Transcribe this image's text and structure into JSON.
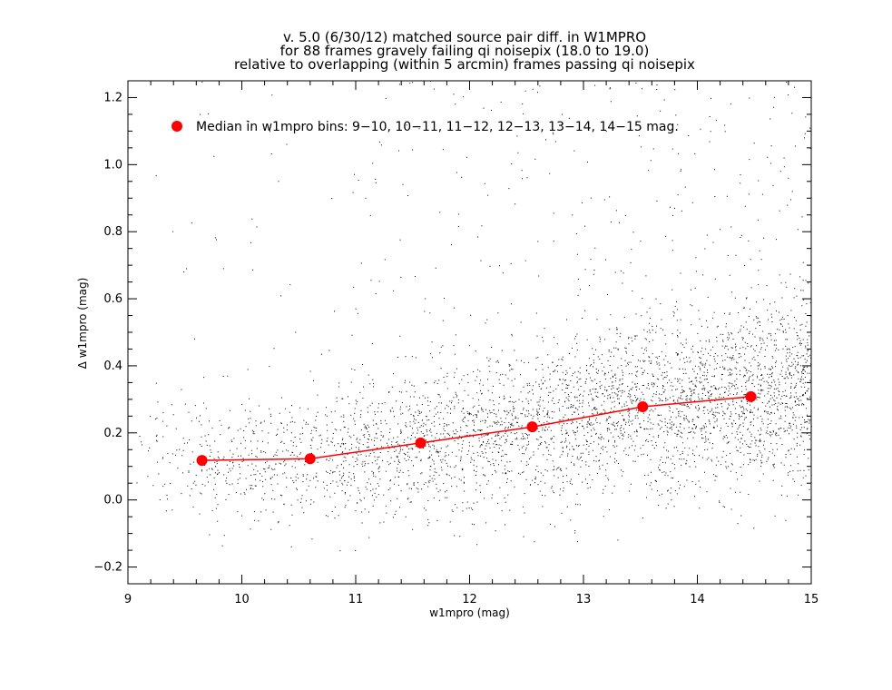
{
  "chart_data": {
    "type": "scatter",
    "title": [
      "v. 5.0 (6/30/12) matched source pair diff. in W1MPRO",
      "for 88 frames gravely failing qi noisepix (18.0 to 19.0)",
      "relative to overlapping (within 5 arcmin) frames passing qi noisepix"
    ],
    "xlabel": "w1mpro (mag)",
    "ylabel": "Δ w1mpro (mag)",
    "xlim": [
      9,
      15
    ],
    "ylim": [
      -0.25,
      1.25
    ],
    "x_ticks": [
      9,
      10,
      11,
      12,
      13,
      14,
      15
    ],
    "y_ticks": [
      -0.2,
      0.0,
      0.2,
      0.4,
      0.6,
      0.8,
      1.0,
      1.2
    ],
    "x_tick_labels": [
      "9",
      "10",
      "11",
      "12",
      "13",
      "14",
      "15"
    ],
    "y_tick_labels": [
      "−0.2",
      "0.0",
      "0.2",
      "0.4",
      "0.6",
      "0.8",
      "1.0",
      "1.2"
    ],
    "legend": {
      "label": "Median in w1mpro bins: 9−10, 10−11, 11−12, 12−13, 13−14, 14−15 mag.",
      "placement": "top-left"
    },
    "series": [
      {
        "name": "Median in w1mpro bins: 9−10, 10−11, 11−12, 12−13, 13−14, 14−15 mag.",
        "kind": "line+markers",
        "color": "#ff0000",
        "x": [
          9.65,
          10.6,
          11.57,
          12.55,
          13.52,
          14.47
        ],
        "y": [
          0.118,
          0.123,
          0.17,
          0.218,
          0.278,
          0.308
        ]
      }
    ],
    "scatter_density": {
      "color": "#000000",
      "description_bins": [
        9.5,
        10.5,
        11.5,
        12.5,
        13.5,
        14.5
      ],
      "relative_density": [
        0.08,
        0.1,
        0.18,
        0.35,
        0.55,
        0.6
      ]
    }
  }
}
